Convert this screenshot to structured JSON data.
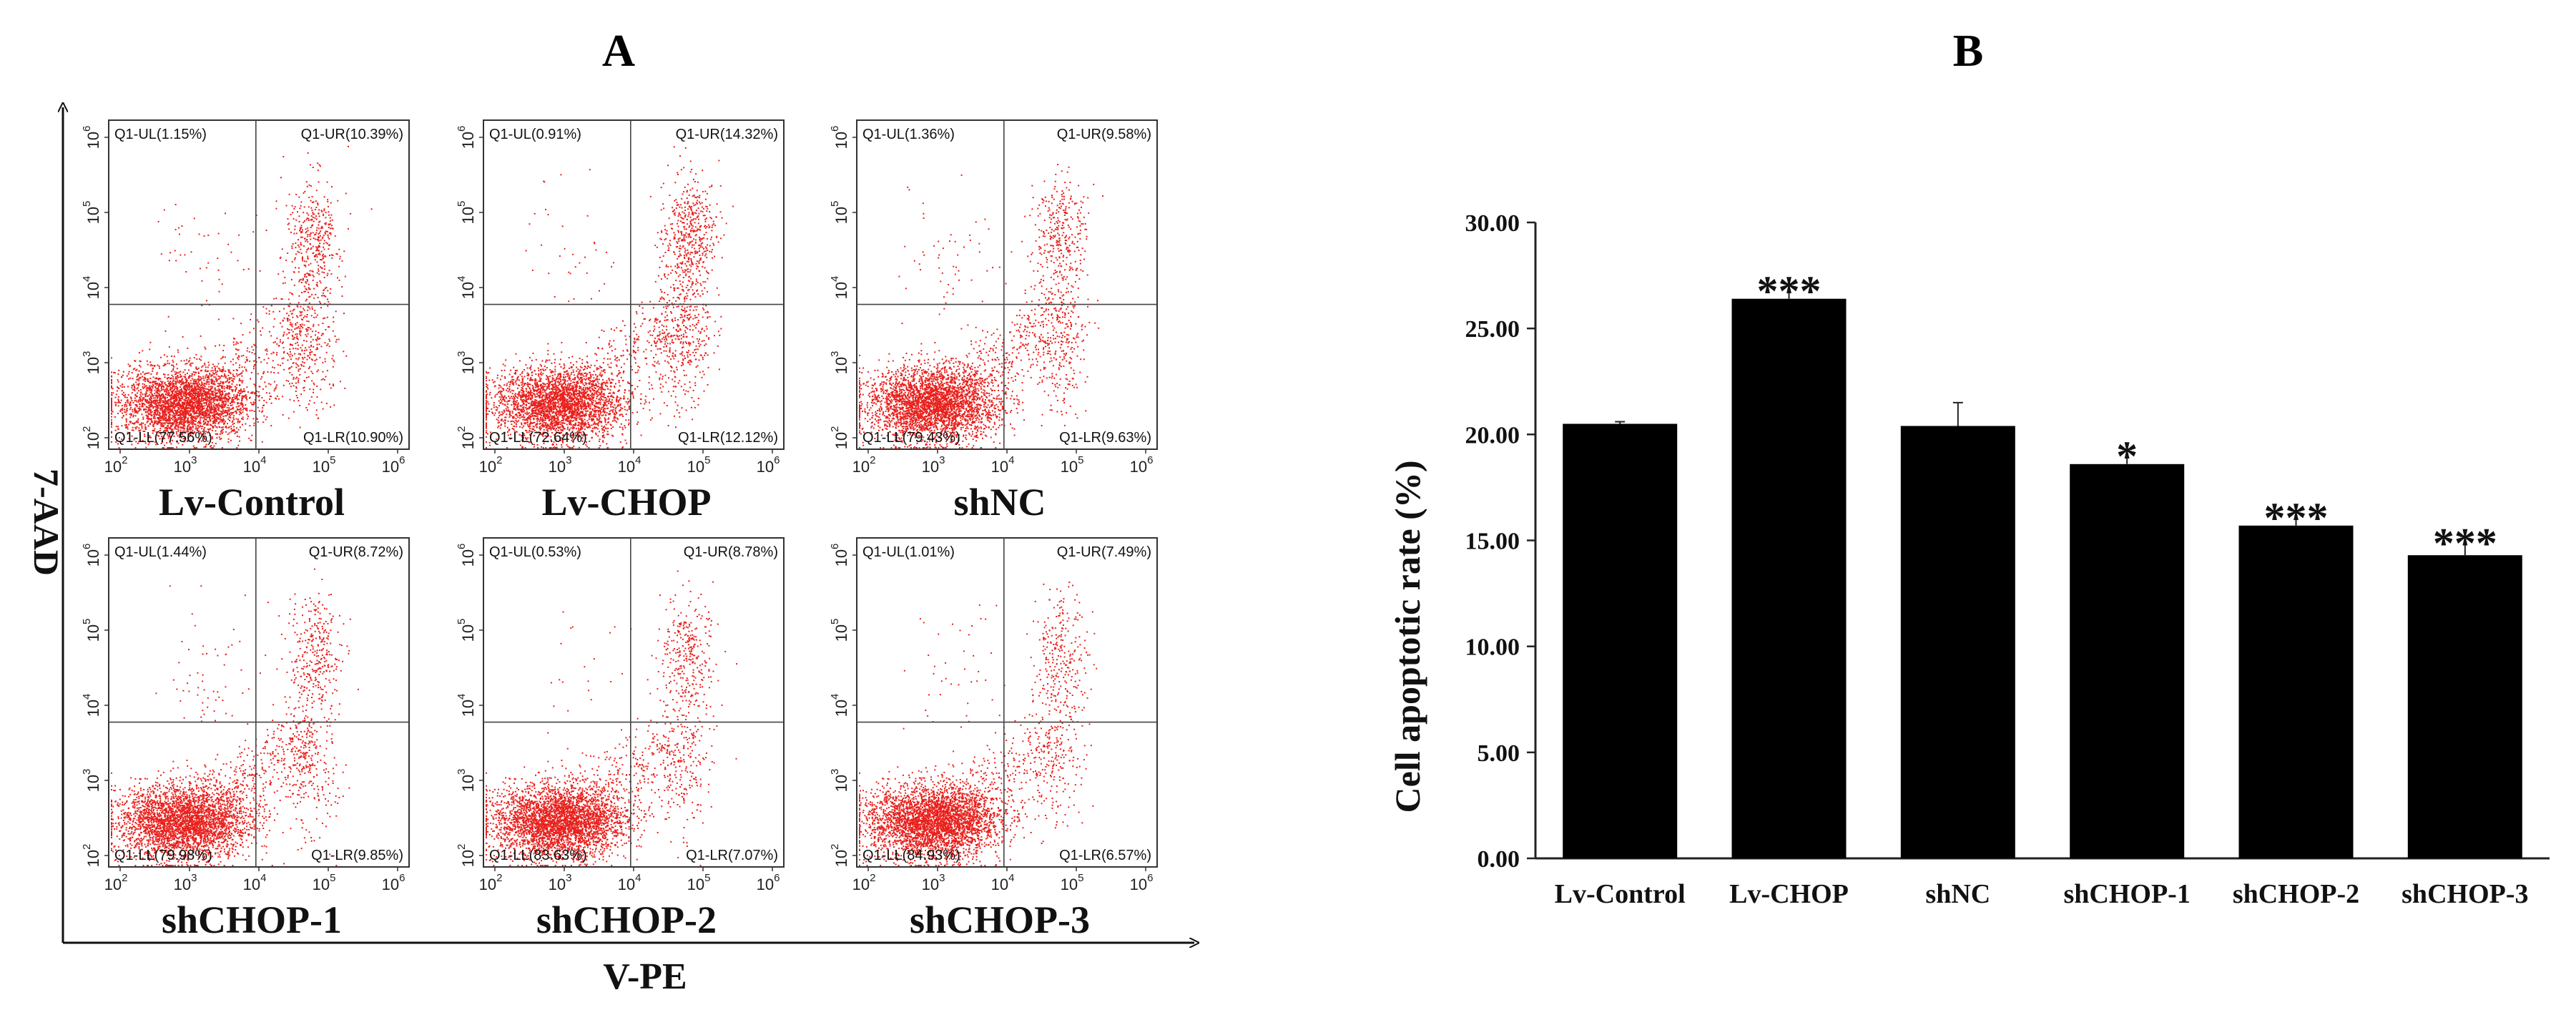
{
  "panels": {
    "a_label": "A",
    "b_label": "B"
  },
  "flow": {
    "x_axis_title": "V-PE",
    "y_axis_title": "7-AAD",
    "tick_labels": [
      "2",
      "3",
      "4",
      "5",
      "6"
    ],
    "tick_base": "10",
    "point_color": "#e8201c",
    "plots": [
      {
        "sample": "Lv-Control",
        "ul": "Q1-UL(1.15%)",
        "ur": "Q1-UR(10.39%)",
        "ll": "Q1-LL(77.56%)",
        "lr": "Q1-LR(10.90%)",
        "ur_pct": 10.39,
        "lr_pct": 10.9,
        "ul_pct": 1.15,
        "ll_pct": 77.56
      },
      {
        "sample": "Lv-CHOP",
        "ul": "Q1-UL(0.91%)",
        "ur": "Q1-UR(14.32%)",
        "ll": "Q1-LL(72.64%)",
        "lr": "Q1-LR(12.12%)",
        "ur_pct": 14.32,
        "lr_pct": 12.12,
        "ul_pct": 0.91,
        "ll_pct": 72.64
      },
      {
        "sample": "shNC",
        "ul": "Q1-UL(1.36%)",
        "ur": "Q1-UR(9.58%)",
        "ll": "Q1-LL(79.43%)",
        "lr": "Q1-LR(9.63%)",
        "ur_pct": 9.58,
        "lr_pct": 9.63,
        "ul_pct": 1.36,
        "ll_pct": 79.43
      },
      {
        "sample": "shCHOP-1",
        "ul": "Q1-UL(1.44%)",
        "ur": "Q1-UR(8.72%)",
        "ll": "Q1-LL(79.98%)",
        "lr": "Q1-LR(9.85%)",
        "ur_pct": 8.72,
        "lr_pct": 9.85,
        "ul_pct": 1.44,
        "ll_pct": 79.98
      },
      {
        "sample": "shCHOP-2",
        "ul": "Q1-UL(0.53%)",
        "ur": "Q1-UR(8.78%)",
        "ll": "Q1-LL(83.63%)",
        "lr": "Q1-LR(7.07%)",
        "ur_pct": 8.78,
        "lr_pct": 7.07,
        "ul_pct": 0.53,
        "ll_pct": 83.63
      },
      {
        "sample": "shCHOP-3",
        "ul": "Q1-UL(1.01%)",
        "ur": "Q1-UR(7.49%)",
        "ll": "Q1-LL(84.93%)",
        "lr": "Q1-LR(6.57%)",
        "ur_pct": 7.49,
        "lr_pct": 6.57,
        "ul_pct": 1.01,
        "ll_pct": 84.93
      }
    ]
  },
  "chart_data": {
    "type": "bar",
    "title": "",
    "xlabel": "",
    "ylabel": "Cell apoptotic rate (%)",
    "ylim": [
      0,
      30
    ],
    "yticks": [
      "0.00",
      "5.00",
      "10.00",
      "15.00",
      "20.00",
      "25.00",
      "30.00"
    ],
    "categories": [
      "Lv-Control",
      "Lv-CHOP",
      "shNC",
      "shCHOP-1",
      "shCHOP-2",
      "shCHOP-3"
    ],
    "values": [
      20.5,
      26.4,
      20.4,
      18.6,
      15.7,
      14.3
    ],
    "errors": [
      0.1,
      0.7,
      1.1,
      0.7,
      0.7,
      0.9
    ],
    "significance": [
      "",
      "***",
      "",
      "*",
      "***",
      "***"
    ],
    "bar_color": "#000000"
  }
}
